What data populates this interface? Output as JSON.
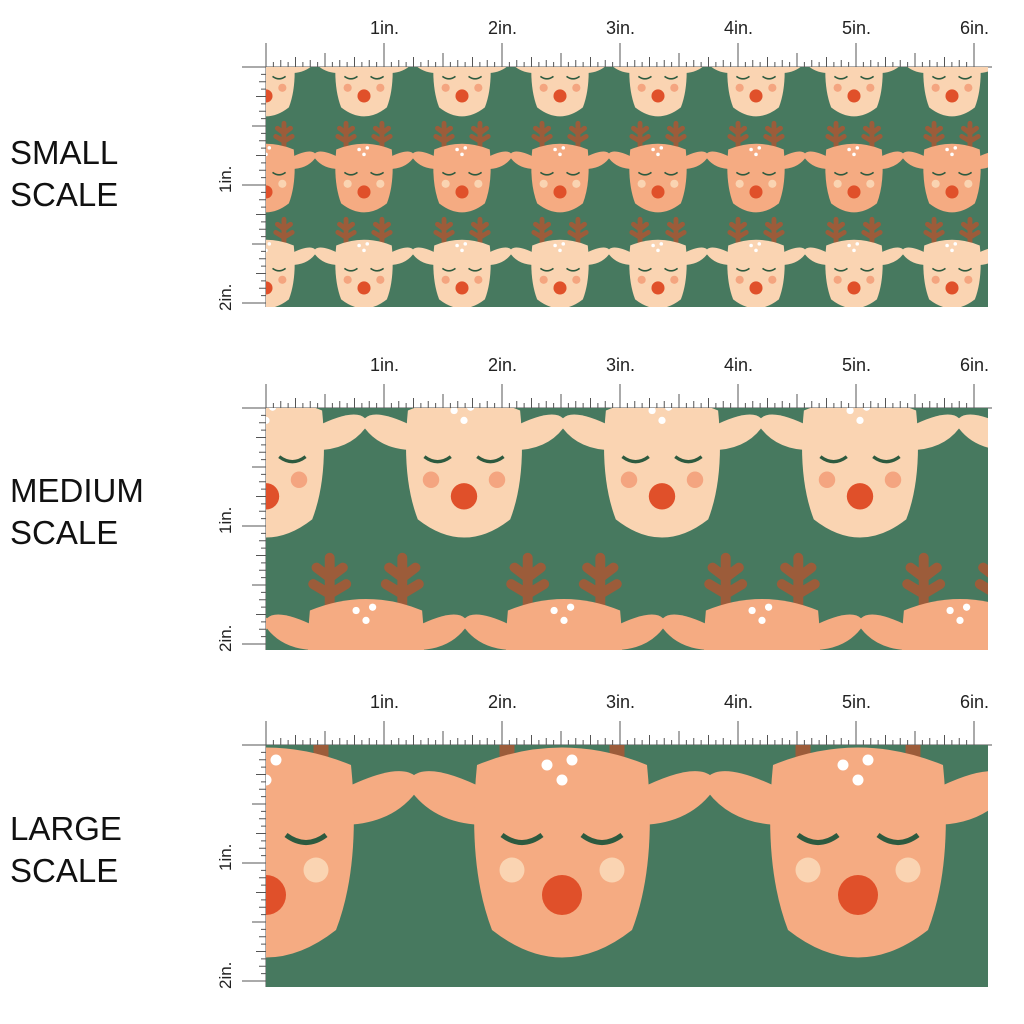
{
  "ruler": {
    "inch_labels": [
      "1in.",
      "2in.",
      "3in.",
      "4in.",
      "5in.",
      "6in."
    ],
    "vertical_labels": [
      "1in.",
      "2in."
    ]
  },
  "sections": [
    {
      "title": "SMALL\nSCALE"
    },
    {
      "title": "MEDIUM\nSCALE"
    },
    {
      "title": "LARGE\nSCALE"
    }
  ],
  "colors": {
    "background": "#47795f",
    "face_light": "#fad4b2",
    "face_dark": "#f5ab82",
    "antler": "#9c5c3a",
    "nose": "#e0502a",
    "cheek": "#f4a580",
    "lash": "#2d5a3f"
  },
  "pattern": {
    "name": "reindeer-faces",
    "swatch_count": 3
  }
}
